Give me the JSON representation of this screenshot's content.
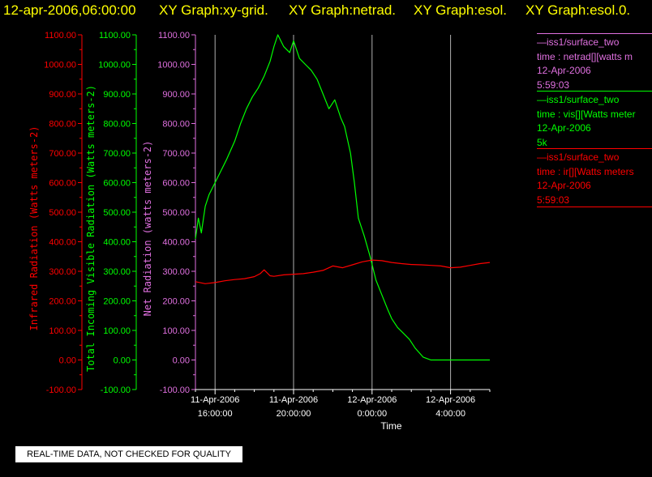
{
  "header": {
    "timestamp": "12-apr-2006,06:00:00",
    "graphs": [
      "XY Graph:xy-grid.",
      "XY Graph:netrad.",
      "XY Graph:esol.",
      "XY Graph:esol.0."
    ]
  },
  "colors": {
    "red": "#ff0000",
    "green": "#00ff00",
    "violet": "#e070e0",
    "white": "#ffffff",
    "title": "#ffff00",
    "grid": "#b0b0b0"
  },
  "chart_data": {
    "type": "line",
    "xlabel": "Time",
    "x_ticks": [
      {
        "line1": "11-Apr-2006",
        "line2": "16:00:00",
        "hours": 16
      },
      {
        "line1": "11-Apr-2006",
        "line2": "20:00:00",
        "hours": 20
      },
      {
        "line1": "12-Apr-2006",
        "line2": "0:00:00",
        "hours": 24
      },
      {
        "line1": "12-Apr-2006",
        "line2": "4:00:00",
        "hours": 28
      }
    ],
    "x_range_hours": [
      15.0,
      30.0
    ],
    "y_axes": [
      {
        "label": "Infrared Radiation (Watts meters-2)",
        "color": "#ff0000",
        "ylim": [
          -100,
          1100
        ]
      },
      {
        "label": "Total Incoming Visible Radiation (Watts meters-2)",
        "color": "#00ff00",
        "ylim": [
          -100,
          1100
        ]
      },
      {
        "label": "Net Radiation (watts meters-2)",
        "color": "#e070e0",
        "ylim": [
          -100,
          1100
        ]
      }
    ],
    "y_ticks": [
      "1100.00",
      "1000.00",
      "900.00",
      "800.00",
      "700.00",
      "600.00",
      "500.00",
      "400.00",
      "300.00",
      "200.00",
      "100.00",
      "0.00",
      "-100.00"
    ],
    "grid": "vertical",
    "legend_position": "right",
    "series": [
      {
        "name": "vis",
        "color": "#00ff00",
        "x_hours": [
          15.0,
          15.15,
          15.3,
          15.5,
          15.7,
          16.0,
          16.3,
          16.6,
          17.0,
          17.3,
          17.6,
          17.9,
          18.2,
          18.5,
          18.8,
          19.0,
          19.2,
          19.5,
          19.8,
          20.0,
          20.3,
          20.6,
          20.9,
          21.2,
          21.5,
          21.8,
          22.1,
          22.4,
          22.6,
          22.9,
          23.1,
          23.3,
          23.6,
          23.9,
          24.2,
          24.5,
          24.8,
          25.0,
          25.3,
          25.6,
          25.9,
          26.2,
          26.6,
          27.0,
          27.5,
          28.0,
          28.5,
          29.0,
          29.5,
          30.0
        ],
        "values": [
          410,
          480,
          430,
          520,
          560,
          600,
          640,
          680,
          740,
          800,
          850,
          890,
          920,
          960,
          1010,
          1060,
          1100,
          1060,
          1040,
          1080,
          1020,
          1000,
          980,
          950,
          900,
          850,
          880,
          820,
          790,
          700,
          600,
          480,
          420,
          350,
          270,
          220,
          170,
          140,
          110,
          90,
          70,
          40,
          10,
          0,
          0,
          0,
          0,
          0,
          0,
          0
        ]
      },
      {
        "name": "ir",
        "color": "#ff0000",
        "x_hours": [
          15.0,
          15.5,
          16.0,
          16.5,
          17.0,
          17.5,
          18.0,
          18.3,
          18.5,
          18.8,
          19.0,
          19.5,
          20.0,
          20.5,
          21.0,
          21.5,
          22.0,
          22.5,
          23.0,
          23.5,
          24.0,
          24.5,
          25.0,
          25.5,
          26.0,
          26.5,
          27.0,
          27.5,
          28.0,
          28.5,
          29.0,
          29.5,
          30.0
        ],
        "values": [
          265,
          258,
          262,
          268,
          272,
          275,
          282,
          292,
          305,
          285,
          283,
          288,
          290,
          292,
          297,
          303,
          318,
          312,
          322,
          332,
          338,
          336,
          330,
          326,
          323,
          322,
          320,
          318,
          312,
          314,
          320,
          326,
          330
        ]
      }
    ]
  },
  "legend": [
    {
      "source": "—iss1/surface_two",
      "label": "time : netrad[][watts m",
      "date": "12-Apr-2006",
      "value": "5:59:03",
      "color": "#e070e0"
    },
    {
      "source": "—iss1/surface_two",
      "label": "time : vis[][Watts meter",
      "date": "12-Apr-2006",
      "value": "5k",
      "color": "#00ff00"
    },
    {
      "source": "—iss1/surface_two",
      "label": "time : ir[][Watts meters",
      "date": "12-Apr-2006",
      "value": "5:59:03",
      "color": "#ff0000"
    }
  ],
  "disclaimer": "REAL-TIME DATA, NOT CHECKED FOR QUALITY"
}
